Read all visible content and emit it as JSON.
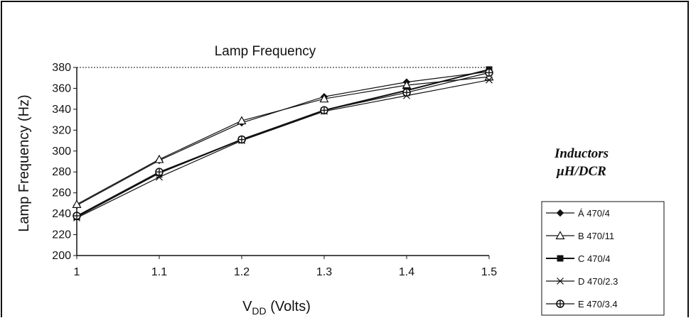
{
  "chart_data": {
    "type": "line",
    "title": "Lamp Frequency",
    "xlabel_main": "V",
    "xlabel_sub": "DD",
    "xlabel_rest": " (Volts)",
    "ylabel": "Lamp Frequency (Hz)",
    "x": [
      1,
      1.1,
      1.2,
      1.3,
      1.4,
      1.5
    ],
    "x_tick_labels": [
      "1",
      "1.1",
      "1.2",
      "1.3",
      "1.4",
      "1.5"
    ],
    "y_ticks": [
      200,
      220,
      240,
      260,
      280,
      300,
      320,
      340,
      360,
      380
    ],
    "xlim": [
      1,
      1.5
    ],
    "ylim": [
      200,
      380
    ],
    "grid": "dotted line at top (380)",
    "legend_title_line1": "Inductors",
    "legend_title_line2": "μH/DCR",
    "legend_placement": "right",
    "series": [
      {
        "name": "Á 470/4",
        "marker": "diamond",
        "values": [
          248,
          291,
          327,
          352,
          366,
          376
        ]
      },
      {
        "name": "B 470/11",
        "marker": "triangle",
        "values": [
          249,
          292,
          329,
          350,
          363,
          371
        ]
      },
      {
        "name": "C 470/4",
        "marker": "square",
        "values": [
          237,
          279,
          311,
          339,
          358,
          378
        ]
      },
      {
        "name": "D 470/2.3",
        "marker": "star",
        "values": [
          236,
          275,
          310,
          338,
          353,
          368
        ]
      },
      {
        "name": "E 470/3.4",
        "marker": "circle",
        "values": [
          238,
          280,
          311,
          339,
          356,
          375
        ]
      }
    ]
  }
}
